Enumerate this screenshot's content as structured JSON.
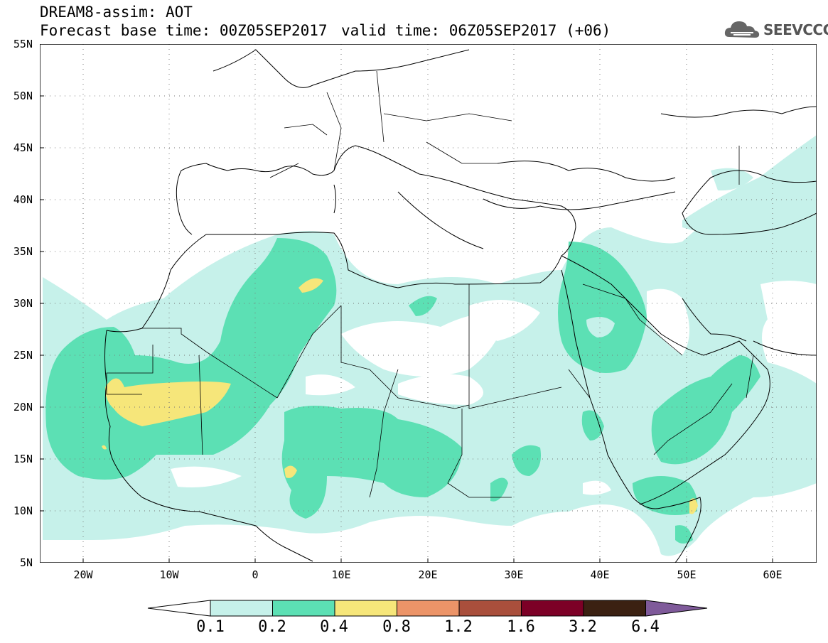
{
  "header": {
    "title": "DREAM8-assim: AOT",
    "base_time": "Forecast base time: 00Z05SEP2017",
    "valid_time": "valid time: 06Z05SEP2017 (+06)",
    "logo_text": "SEEVCCC"
  },
  "map": {
    "lat_labels": [
      "55N",
      "50N",
      "45N",
      "40N",
      "35N",
      "30N",
      "25N",
      "20N",
      "15N",
      "10N",
      "5N"
    ],
    "lon_labels": [
      "20W",
      "10W",
      "0",
      "10E",
      "20E",
      "30E",
      "40E",
      "50E",
      "60E"
    ],
    "background_color": "#ffffff",
    "coastline_color": "#000000"
  },
  "colorbar": {
    "labels": [
      "0.1",
      "0.2",
      "0.4",
      "0.8",
      "1.2",
      "1.6",
      "3.2",
      "6.4"
    ],
    "colors": [
      "#ffffff",
      "#c6f1ea",
      "#5ce0b4",
      "#f6e67a",
      "#ec9468",
      "#a94f3c",
      "#7c0026",
      "#3b2112",
      "#7f5a9a"
    ]
  }
}
